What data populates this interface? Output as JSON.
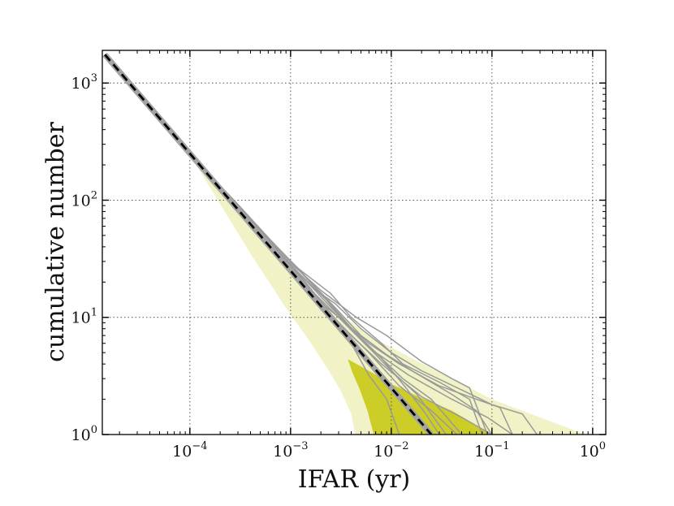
{
  "chart_data": {
    "type": "line",
    "xscale": "log",
    "yscale": "log",
    "xlabel": "IFAR (yr)",
    "ylabel": "cumulative number",
    "xlim": [
      1.35e-05,
      1.35
    ],
    "ylim": [
      1,
      1900
    ],
    "grid": true,
    "x_ticks": [
      {
        "base": "10",
        "exp": "−4",
        "value": 0.0001
      },
      {
        "base": "10",
        "exp": "−3",
        "value": 0.001
      },
      {
        "base": "10",
        "exp": "−2",
        "value": 0.01
      },
      {
        "base": "10",
        "exp": "−1",
        "value": 0.1
      },
      {
        "base": "10",
        "exp": "0",
        "value": 1
      }
    ],
    "y_ticks": [
      {
        "base": "10",
        "exp": "0",
        "value": 1
      },
      {
        "base": "10",
        "exp": "1",
        "value": 10
      },
      {
        "base": "10",
        "exp": "2",
        "value": 100
      },
      {
        "base": "10",
        "exp": "3",
        "value": 1000
      }
    ],
    "expected_background": {
      "name": "expected background (dashed)",
      "points": [
        [
          1.43e-05,
          1750
        ],
        [
          0.025,
          1
        ]
      ]
    },
    "bands": [
      {
        "name": "outer band",
        "color": "#f1f2c6",
        "points": [
          [
            1.43e-05,
            1750
          ],
          [
            0.0001,
            250
          ],
          [
            0.0003,
            80
          ],
          [
            0.0007,
            36
          ],
          [
            0.0015,
            18
          ],
          [
            0.003,
            11
          ],
          [
            0.006,
            7
          ],
          [
            0.015,
            4.6
          ],
          [
            0.04,
            3
          ],
          [
            0.1,
            2
          ],
          [
            0.3,
            1.4
          ],
          [
            0.85,
            1
          ],
          [
            0.0044,
            1
          ],
          [
            0.004,
            1.5
          ],
          [
            0.0032,
            2.3
          ],
          [
            0.0024,
            3.5
          ],
          [
            0.0016,
            6
          ],
          [
            0.0009,
            12
          ],
          [
            0.0004,
            35
          ],
          [
            0.0001,
            245
          ]
        ]
      },
      {
        "name": "inner band",
        "color": "#cdcd28",
        "points": [
          [
            0.0037,
            4.4
          ],
          [
            0.006,
            3.5
          ],
          [
            0.01,
            2.7
          ],
          [
            0.02,
            2.05
          ],
          [
            0.04,
            1.6
          ],
          [
            0.1,
            1
          ],
          [
            0.0067,
            1
          ],
          [
            0.0058,
            1.6
          ],
          [
            0.0048,
            2.5
          ],
          [
            0.0041,
            3.4
          ]
        ]
      }
    ],
    "series": [
      {
        "name": "realization 1",
        "points": [
          [
            1.43e-05,
            1750
          ],
          [
            0.0001,
            250
          ],
          [
            0.00025,
            102
          ],
          [
            0.0005,
            52
          ],
          [
            0.001,
            26
          ],
          [
            0.0022,
            12
          ],
          [
            0.004,
            7
          ],
          [
            0.008,
            4
          ],
          [
            0.02,
            2.1
          ],
          [
            0.05,
            1.4
          ],
          [
            0.1,
            1
          ]
        ]
      },
      {
        "name": "realization 2",
        "points": [
          [
            0.0001,
            250
          ],
          [
            0.0002,
            120
          ],
          [
            0.00045,
            58
          ],
          [
            0.0009,
            30
          ],
          [
            0.0017,
            16
          ],
          [
            0.003,
            9
          ],
          [
            0.006,
            5
          ],
          [
            0.012,
            2.6
          ],
          [
            0.025,
            1.6
          ],
          [
            0.045,
            1
          ]
        ]
      },
      {
        "name": "realization 3",
        "points": [
          [
            0.0001,
            250
          ],
          [
            0.00028,
            95
          ],
          [
            0.0006,
            45
          ],
          [
            0.0012,
            24
          ],
          [
            0.0025,
            13
          ],
          [
            0.005,
            6.5
          ],
          [
            0.01,
            3.5
          ],
          [
            0.018,
            2.2
          ],
          [
            0.035,
            1
          ]
        ]
      },
      {
        "name": "realization 4",
        "points": [
          [
            0.0001,
            250
          ],
          [
            0.00022,
            110
          ],
          [
            0.0004,
            60
          ],
          [
            0.0008,
            32
          ],
          [
            0.0015,
            18
          ],
          [
            0.003,
            10
          ],
          [
            0.006,
            5.5
          ],
          [
            0.015,
            3.2
          ],
          [
            0.04,
            2
          ],
          [
            0.09,
            1.4
          ],
          [
            0.16,
            1
          ]
        ]
      },
      {
        "name": "realization 5",
        "points": [
          [
            0.0001,
            250
          ],
          [
            0.0003,
            88
          ],
          [
            0.0007,
            40
          ],
          [
            0.0014,
            20
          ],
          [
            0.0022,
            12.5
          ],
          [
            0.0035,
            9
          ],
          [
            0.006,
            6
          ],
          [
            0.012,
            4
          ],
          [
            0.03,
            2.6
          ],
          [
            0.07,
            2
          ],
          [
            0.12,
            1.7
          ],
          [
            0.16,
            1
          ]
        ]
      },
      {
        "name": "realization 6",
        "points": [
          [
            0.0001,
            250
          ],
          [
            0.00026,
            98
          ],
          [
            0.00055,
            50
          ],
          [
            0.0011,
            26
          ],
          [
            0.002,
            15
          ],
          [
            0.004,
            8
          ],
          [
            0.008,
            4.5
          ],
          [
            0.014,
            2.5
          ],
          [
            0.022,
            1.5
          ],
          [
            0.03,
            1
          ]
        ]
      },
      {
        "name": "realization 7",
        "points": [
          [
            0.0001,
            250
          ],
          [
            0.0002,
            125
          ],
          [
            0.0005,
            54
          ],
          [
            0.001,
            28
          ],
          [
            0.0018,
            17
          ],
          [
            0.0028,
            13
          ],
          [
            0.005,
            8
          ],
          [
            0.01,
            5
          ],
          [
            0.02,
            3.5
          ],
          [
            0.05,
            2.4
          ],
          [
            0.1,
            1.8
          ],
          [
            0.2,
            1.5
          ],
          [
            0.28,
            1
          ]
        ]
      },
      {
        "name": "realization 8",
        "points": [
          [
            0.0001,
            250
          ],
          [
            0.00024,
            104
          ],
          [
            0.0005,
            50
          ],
          [
            0.0009,
            27
          ],
          [
            0.0014,
            17
          ],
          [
            0.0022,
            11
          ],
          [
            0.004,
            6
          ],
          [
            0.006,
            3.2
          ],
          [
            0.009,
            2
          ],
          [
            0.012,
            1
          ]
        ]
      },
      {
        "name": "realization 9",
        "points": [
          [
            0.0001,
            250
          ],
          [
            0.0003,
            92
          ],
          [
            0.0006,
            48
          ],
          [
            0.0013,
            24
          ],
          [
            0.0028,
            12
          ],
          [
            0.005,
            7
          ],
          [
            0.009,
            4.8
          ],
          [
            0.018,
            3.3
          ],
          [
            0.04,
            2.2
          ],
          [
            0.07,
            1.6
          ],
          [
            0.1,
            1
          ]
        ]
      },
      {
        "name": "realization 10",
        "points": [
          [
            0.0001,
            250
          ],
          [
            0.00028,
            96
          ],
          [
            0.0006,
            47
          ],
          [
            0.0012,
            26
          ],
          [
            0.0025,
            16
          ],
          [
            0.004,
            10
          ],
          [
            0.008,
            6
          ],
          [
            0.013,
            4
          ],
          [
            0.03,
            2.8
          ],
          [
            0.06,
            2
          ],
          [
            0.08,
            1
          ]
        ]
      },
      {
        "name": "realization 11",
        "points": [
          [
            0.0001,
            250
          ],
          [
            0.00025,
            100
          ],
          [
            0.0005,
            55
          ],
          [
            0.001,
            30
          ],
          [
            0.002,
            16
          ],
          [
            0.0035,
            9
          ],
          [
            0.007,
            5
          ],
          [
            0.013,
            3
          ],
          [
            0.025,
            2
          ],
          [
            0.05,
            1
          ]
        ]
      },
      {
        "name": "realization 12",
        "points": [
          [
            0.0001,
            250
          ],
          [
            0.00027,
            100
          ],
          [
            0.00055,
            52
          ],
          [
            0.0011,
            27
          ],
          [
            0.002,
            17
          ],
          [
            0.0045,
            10
          ],
          [
            0.009,
            7
          ],
          [
            0.02,
            4.2
          ],
          [
            0.04,
            3
          ],
          [
            0.06,
            2.5
          ],
          [
            0.09,
            1
          ]
        ]
      }
    ]
  }
}
